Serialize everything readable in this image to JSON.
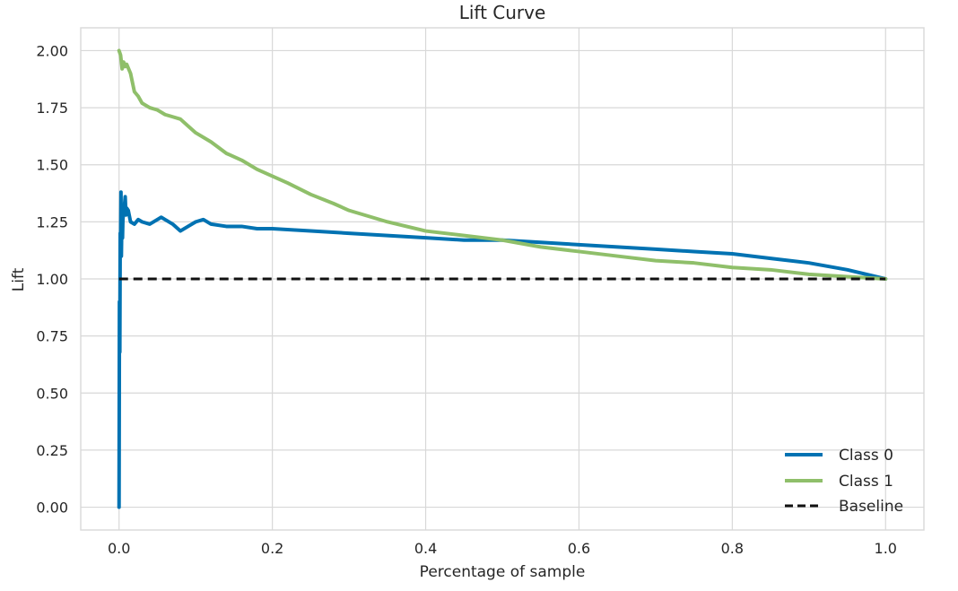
{
  "chart_data": {
    "type": "line",
    "title": "Lift Curve",
    "xlabel": "Percentage of sample",
    "ylabel": "Lift",
    "xlim": [
      -0.05,
      1.05
    ],
    "ylim": [
      -0.1,
      2.1
    ],
    "xticks": [
      0.0,
      0.2,
      0.4,
      0.6,
      0.8,
      1.0
    ],
    "xtick_labels": [
      "0.0",
      "0.2",
      "0.4",
      "0.6",
      "0.8",
      "1.0"
    ],
    "yticks": [
      0.0,
      0.25,
      0.5,
      0.75,
      1.0,
      1.25,
      1.5,
      1.75,
      2.0
    ],
    "ytick_labels": [
      "0.00",
      "0.25",
      "0.50",
      "0.75",
      "1.00",
      "1.25",
      "1.50",
      "1.75",
      "2.00"
    ],
    "grid": true,
    "legend_position": "bottom-right",
    "series": [
      {
        "name": "Class 0",
        "color": "#0072B2",
        "style": "solid",
        "x": [
          0.0,
          0.0005,
          0.001,
          0.0015,
          0.002,
          0.0025,
          0.003,
          0.0035,
          0.004,
          0.0045,
          0.005,
          0.006,
          0.007,
          0.008,
          0.009,
          0.01,
          0.012,
          0.015,
          0.02,
          0.025,
          0.03,
          0.04,
          0.05,
          0.055,
          0.06,
          0.07,
          0.08,
          0.09,
          0.1,
          0.11,
          0.12,
          0.14,
          0.16,
          0.18,
          0.2,
          0.25,
          0.3,
          0.35,
          0.4,
          0.45,
          0.5,
          0.55,
          0.6,
          0.65,
          0.7,
          0.75,
          0.8,
          0.85,
          0.9,
          0.95,
          1.0
        ],
        "y": [
          0.0,
          0.9,
          0.68,
          1.2,
          1.15,
          1.38,
          1.1,
          1.22,
          1.32,
          1.18,
          1.26,
          1.3,
          1.32,
          1.36,
          1.28,
          1.31,
          1.3,
          1.25,
          1.24,
          1.26,
          1.25,
          1.24,
          1.26,
          1.27,
          1.26,
          1.24,
          1.21,
          1.23,
          1.25,
          1.26,
          1.24,
          1.23,
          1.23,
          1.22,
          1.22,
          1.21,
          1.2,
          1.19,
          1.18,
          1.17,
          1.17,
          1.16,
          1.15,
          1.14,
          1.13,
          1.12,
          1.11,
          1.09,
          1.07,
          1.04,
          1.0
        ]
      },
      {
        "name": "Class 1",
        "color": "#8FBF6A",
        "style": "solid",
        "x": [
          0.0,
          0.002,
          0.004,
          0.006,
          0.008,
          0.01,
          0.015,
          0.02,
          0.025,
          0.03,
          0.04,
          0.05,
          0.06,
          0.07,
          0.08,
          0.09,
          0.1,
          0.12,
          0.14,
          0.16,
          0.18,
          0.2,
          0.22,
          0.25,
          0.28,
          0.3,
          0.35,
          0.4,
          0.45,
          0.5,
          0.55,
          0.6,
          0.65,
          0.7,
          0.75,
          0.8,
          0.85,
          0.9,
          0.95,
          1.0
        ],
        "y": [
          2.0,
          1.98,
          1.92,
          1.95,
          1.93,
          1.94,
          1.9,
          1.82,
          1.8,
          1.77,
          1.75,
          1.74,
          1.72,
          1.71,
          1.7,
          1.67,
          1.64,
          1.6,
          1.55,
          1.52,
          1.48,
          1.45,
          1.42,
          1.37,
          1.33,
          1.3,
          1.25,
          1.21,
          1.19,
          1.17,
          1.14,
          1.12,
          1.1,
          1.08,
          1.07,
          1.05,
          1.04,
          1.02,
          1.01,
          1.0
        ]
      },
      {
        "name": "Baseline",
        "color": "#111111",
        "style": "dashed",
        "x": [
          0.0,
          1.0
        ],
        "y": [
          1.0,
          1.0
        ]
      }
    ]
  }
}
